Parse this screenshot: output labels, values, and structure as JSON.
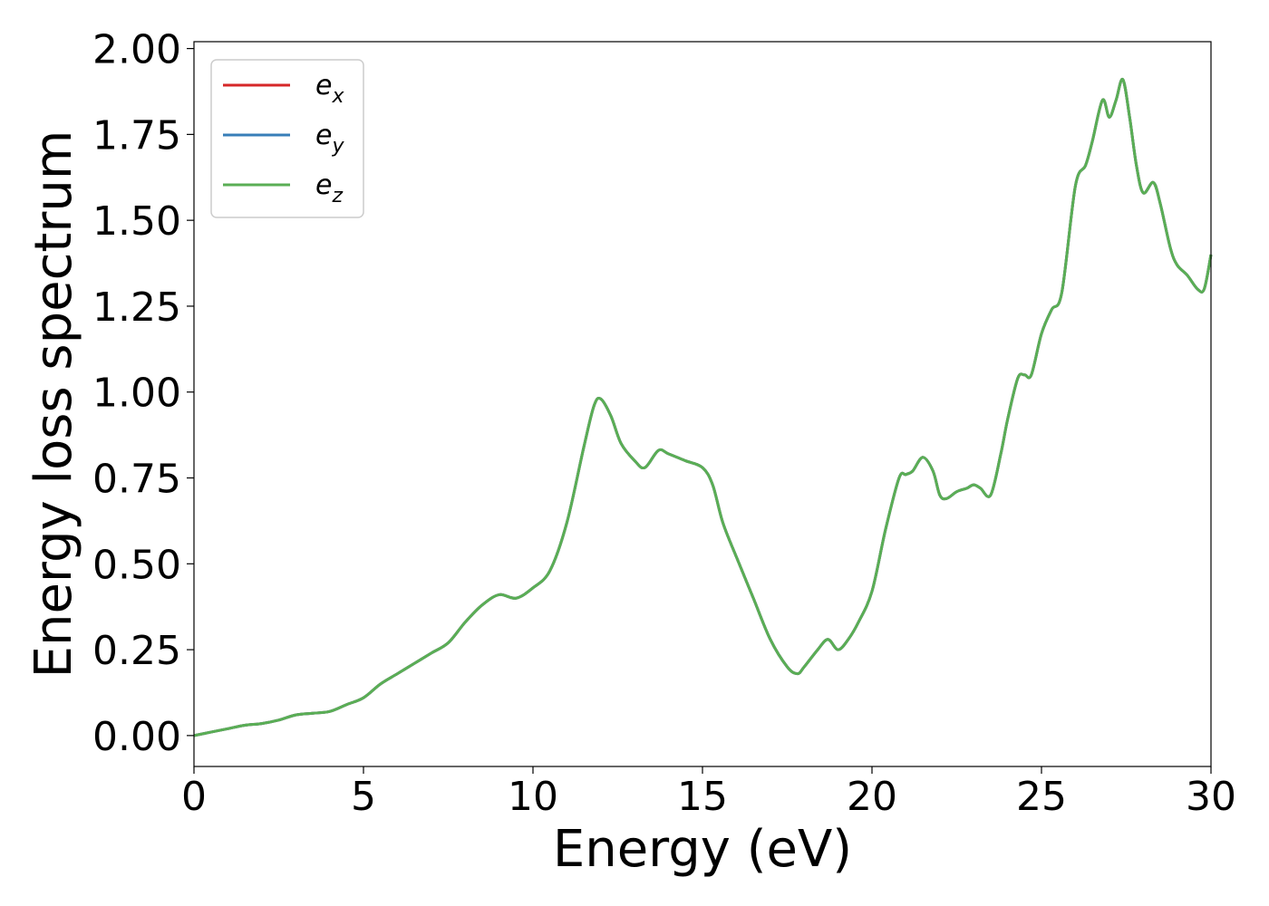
{
  "chart_data": {
    "type": "line",
    "title": "",
    "xlabel": "Energy (eV)",
    "ylabel": "Energy loss spectrum",
    "xlim": [
      0,
      30
    ],
    "ylim": [
      -0.09,
      2.02
    ],
    "xticks": [
      "0",
      "5",
      "10",
      "15",
      "20",
      "25",
      "30"
    ],
    "yticks": [
      "0.00",
      "0.25",
      "0.50",
      "0.75",
      "1.00",
      "1.25",
      "1.50",
      "1.75",
      "2.00"
    ],
    "grid": false,
    "legend_position": "top-left",
    "x": [
      0,
      0.5,
      1,
      1.5,
      2,
      2.5,
      3,
      3.5,
      4,
      4.5,
      5,
      5.5,
      6,
      6.5,
      7,
      7.5,
      8,
      8.5,
      9,
      9.5,
      10,
      10.5,
      11,
      11.5,
      11.8,
      12,
      12.3,
      12.6,
      13,
      13.3,
      13.7,
      14,
      14.5,
      15,
      15.3,
      15.6,
      16,
      16.5,
      17,
      17.5,
      17.8,
      18,
      18.4,
      18.7,
      19,
      19.3,
      19.6,
      20,
      20.4,
      20.8,
      21,
      21.2,
      21.5,
      21.8,
      22,
      22.2,
      22.5,
      22.8,
      23,
      23.2,
      23.5,
      23.8,
      24,
      24.3,
      24.5,
      24.7,
      25,
      25.3,
      25.6,
      26,
      26.3,
      26.5,
      26.8,
      27,
      27.2,
      27.4,
      27.6,
      27.8,
      28,
      28.3,
      28.5,
      28.8,
      29,
      29.3,
      29.6,
      29.8,
      30
    ],
    "series": [
      {
        "name": "e_x",
        "color": "#d62728",
        "values": [
          0.0,
          0.01,
          0.02,
          0.03,
          0.035,
          0.045,
          0.06,
          0.065,
          0.07,
          0.09,
          0.11,
          0.15,
          0.18,
          0.21,
          0.24,
          0.27,
          0.33,
          0.38,
          0.41,
          0.4,
          0.43,
          0.48,
          0.62,
          0.84,
          0.96,
          0.98,
          0.93,
          0.85,
          0.8,
          0.78,
          0.83,
          0.82,
          0.8,
          0.78,
          0.73,
          0.62,
          0.52,
          0.4,
          0.28,
          0.2,
          0.18,
          0.2,
          0.25,
          0.28,
          0.25,
          0.28,
          0.33,
          0.42,
          0.6,
          0.75,
          0.76,
          0.77,
          0.81,
          0.77,
          0.7,
          0.69,
          0.71,
          0.72,
          0.73,
          0.72,
          0.7,
          0.82,
          0.92,
          1.04,
          1.05,
          1.05,
          1.17,
          1.24,
          1.29,
          1.6,
          1.66,
          1.73,
          1.85,
          1.8,
          1.85,
          1.91,
          1.8,
          1.66,
          1.58,
          1.61,
          1.55,
          1.42,
          1.37,
          1.34,
          1.3,
          1.3,
          1.4
        ]
      },
      {
        "name": "e_y",
        "color": "#377eb8",
        "values": [
          0.0,
          0.01,
          0.02,
          0.03,
          0.035,
          0.045,
          0.06,
          0.065,
          0.07,
          0.09,
          0.11,
          0.15,
          0.18,
          0.21,
          0.24,
          0.27,
          0.33,
          0.38,
          0.41,
          0.4,
          0.43,
          0.48,
          0.62,
          0.84,
          0.96,
          0.98,
          0.93,
          0.85,
          0.8,
          0.78,
          0.83,
          0.82,
          0.8,
          0.78,
          0.73,
          0.62,
          0.52,
          0.4,
          0.28,
          0.2,
          0.18,
          0.2,
          0.25,
          0.28,
          0.25,
          0.28,
          0.33,
          0.42,
          0.6,
          0.75,
          0.76,
          0.77,
          0.81,
          0.77,
          0.7,
          0.69,
          0.71,
          0.72,
          0.73,
          0.72,
          0.7,
          0.82,
          0.92,
          1.04,
          1.05,
          1.05,
          1.17,
          1.24,
          1.29,
          1.6,
          1.66,
          1.73,
          1.85,
          1.8,
          1.85,
          1.91,
          1.8,
          1.66,
          1.58,
          1.61,
          1.55,
          1.42,
          1.37,
          1.34,
          1.3,
          1.3,
          1.4
        ]
      },
      {
        "name": "e_z",
        "color": "#5aae55",
        "values": [
          0.0,
          0.01,
          0.02,
          0.03,
          0.035,
          0.045,
          0.06,
          0.065,
          0.07,
          0.09,
          0.11,
          0.15,
          0.18,
          0.21,
          0.24,
          0.27,
          0.33,
          0.38,
          0.41,
          0.4,
          0.43,
          0.48,
          0.62,
          0.84,
          0.96,
          0.98,
          0.93,
          0.85,
          0.8,
          0.78,
          0.83,
          0.82,
          0.8,
          0.78,
          0.73,
          0.62,
          0.52,
          0.4,
          0.28,
          0.2,
          0.18,
          0.2,
          0.25,
          0.28,
          0.25,
          0.28,
          0.33,
          0.42,
          0.6,
          0.75,
          0.76,
          0.77,
          0.81,
          0.77,
          0.7,
          0.69,
          0.71,
          0.72,
          0.73,
          0.72,
          0.7,
          0.82,
          0.92,
          1.04,
          1.05,
          1.05,
          1.17,
          1.24,
          1.29,
          1.6,
          1.66,
          1.73,
          1.85,
          1.8,
          1.85,
          1.91,
          1.8,
          1.66,
          1.58,
          1.61,
          1.55,
          1.42,
          1.37,
          1.34,
          1.3,
          1.3,
          1.4
        ]
      }
    ],
    "legend": [
      {
        "base": "e",
        "sub": "x",
        "color": "#d62728"
      },
      {
        "base": "e",
        "sub": "y",
        "color": "#377eb8"
      },
      {
        "base": "e",
        "sub": "z",
        "color": "#5aae55"
      }
    ]
  }
}
